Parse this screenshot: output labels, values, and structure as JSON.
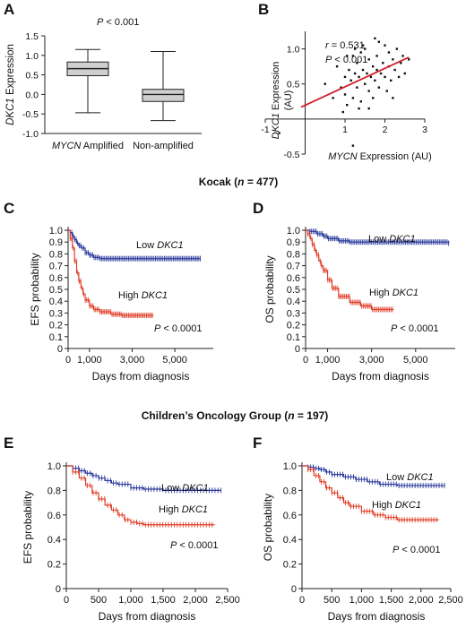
{
  "sections": {
    "kocak": {
      "prefix": "Kocak (",
      "n": "n",
      "suffix": " = 477)"
    },
    "cog": {
      "prefix": "Children’s Oncology Group (",
      "n": "n",
      "suffix": " = 197)"
    }
  },
  "colors": {
    "low": "#2b3a9c",
    "high": "#e0402a",
    "reg": "#d0202a",
    "box": "#cfcfcf"
  },
  "chart_data": [
    {
      "panel": "A",
      "type": "box",
      "pvalue": "P < 0.001",
      "ylabel": "DKC1 Expression",
      "categories": [
        [
          "MYCN",
          " Amplified"
        ],
        [
          "Non-amplified",
          ""
        ]
      ],
      "ylim": [
        -1.0,
        1.5
      ],
      "yticks": [
        "-1.0",
        "-0.5",
        "0.0",
        "0.5",
        "1.0",
        "1.5"
      ],
      "yticks_values": [
        -1.0,
        -0.5,
        0.0,
        0.5,
        1.0,
        1.5
      ],
      "boxes": [
        {
          "min": -0.47,
          "q1": 0.48,
          "median": 0.66,
          "q3": 0.83,
          "max": 1.15
        },
        {
          "min": -0.67,
          "q1": -0.18,
          "median": 0.0,
          "q3": 0.13,
          "max": 1.1
        }
      ]
    },
    {
      "panel": "B",
      "type": "scatter",
      "xlabel": "MYCN",
      "xlabel_rest": " Expression (AU)",
      "ylabel_italic": "DKC1",
      "ylabel_rest": " Expression",
      "ylabel_line2": "(AU)",
      "r_label": "r",
      "r_value": " = 0.531",
      "pvalue": "P < 0.001",
      "xlim": [
        -1,
        3
      ],
      "ylim": [
        -0.5,
        1.25
      ],
      "xticks": [
        "-1",
        "1",
        "2",
        "3"
      ],
      "xticks_values": [
        -1,
        1,
        2,
        3
      ],
      "yticks": [
        "-0.5",
        "0.5",
        "1.0"
      ],
      "yticks_values": [
        -0.5,
        0.5,
        1.0
      ],
      "regression": {
        "x": [
          -0.1,
          2.6
        ],
        "y": [
          0.17,
          0.88
        ]
      },
      "points": [
        [
          -0.65,
          -0.2
        ],
        [
          1.2,
          -0.38
        ],
        [
          0.5,
          0.5
        ],
        [
          0.7,
          0.3
        ],
        [
          0.8,
          0.75
        ],
        [
          0.9,
          0.45
        ],
        [
          1.0,
          0.6
        ],
        [
          1.0,
          0.35
        ],
        [
          1.05,
          0.2
        ],
        [
          1.1,
          0.7
        ],
        [
          1.15,
          0.55
        ],
        [
          1.2,
          0.9
        ],
        [
          1.2,
          0.3
        ],
        [
          1.25,
          0.65
        ],
        [
          1.3,
          0.45
        ],
        [
          1.3,
          0.8
        ],
        [
          1.35,
          0.6
        ],
        [
          1.4,
          0.95
        ],
        [
          1.4,
          0.25
        ],
        [
          1.45,
          0.7
        ],
        [
          1.5,
          0.5
        ],
        [
          1.5,
          1.0
        ],
        [
          1.55,
          0.65
        ],
        [
          1.6,
          0.4
        ],
        [
          1.6,
          0.85
        ],
        [
          1.65,
          0.6
        ],
        [
          1.7,
          0.75
        ],
        [
          1.7,
          0.3
        ],
        [
          1.75,
          0.55
        ],
        [
          1.8,
          0.9
        ],
        [
          1.8,
          0.7
        ],
        [
          1.85,
          1.1
        ],
        [
          1.85,
          0.45
        ],
        [
          1.9,
          0.65
        ],
        [
          1.95,
          0.8
        ],
        [
          2.0,
          1.05
        ],
        [
          2.0,
          0.6
        ],
        [
          2.05,
          0.4
        ],
        [
          2.1,
          0.75
        ],
        [
          2.1,
          0.95
        ],
        [
          2.15,
          0.55
        ],
        [
          2.2,
          0.85
        ],
        [
          2.25,
          0.7
        ],
        [
          2.3,
          1.0
        ],
        [
          2.35,
          0.6
        ],
        [
          2.4,
          0.8
        ],
        [
          2.45,
          0.9
        ],
        [
          2.5,
          0.65
        ],
        [
          1.35,
          0.15
        ],
        [
          1.6,
          0.15
        ],
        [
          1.05,
          0.9
        ],
        [
          1.75,
          1.15
        ],
        [
          0.95,
          0.1
        ],
        [
          1.45,
          1.05
        ],
        [
          2.6,
          0.85
        ],
        [
          1.25,
          1.0
        ],
        [
          2.2,
          0.3
        ]
      ]
    },
    {
      "panel": "C",
      "type": "line",
      "ylabel": "EFS probability",
      "xlabel": "Days from diagnosis",
      "xlim": [
        0,
        6800
      ],
      "ylim": [
        0,
        1.0
      ],
      "xticks": [
        "0",
        "1,000",
        "3,000",
        "5,000"
      ],
      "xticks_values": [
        0,
        1000,
        3000,
        5000
      ],
      "yticks": [
        "0",
        "0.1",
        "0.2",
        "0.3",
        "0.4",
        "0.5",
        "0.6",
        "0.7",
        "0.8",
        "0.9",
        "1.0"
      ],
      "yticks_values": [
        0,
        0.1,
        0.2,
        0.3,
        0.4,
        0.5,
        0.6,
        0.7,
        0.8,
        0.9,
        1.0
      ],
      "pvalue": "P < 0.0001",
      "series": [
        {
          "label_prefix": "Low ",
          "label_italic": "DKC1",
          "key": "low",
          "x": [
            0,
            100,
            200,
            300,
            400,
            500,
            600,
            800,
            1000,
            1200,
            1500,
            2000,
            6200
          ],
          "y": [
            1.0,
            0.98,
            0.95,
            0.92,
            0.89,
            0.87,
            0.85,
            0.81,
            0.79,
            0.77,
            0.76,
            0.76,
            0.76
          ]
        },
        {
          "label_prefix": "High ",
          "label_italic": "DKC1",
          "key": "high",
          "x": [
            0,
            100,
            200,
            300,
            400,
            500,
            600,
            700,
            800,
            1000,
            1200,
            1500,
            2000,
            2500,
            4000
          ],
          "y": [
            1.0,
            0.93,
            0.85,
            0.74,
            0.64,
            0.57,
            0.51,
            0.46,
            0.41,
            0.36,
            0.33,
            0.31,
            0.29,
            0.28,
            0.28
          ]
        }
      ]
    },
    {
      "panel": "D",
      "type": "line",
      "ylabel": "OS probability",
      "xlabel": "Days from diagnosis",
      "xlim": [
        0,
        6800
      ],
      "ylim": [
        0,
        1.0
      ],
      "xticks": [
        "0",
        "1,000",
        "3,000",
        "5,000"
      ],
      "xticks_values": [
        0,
        1000,
        3000,
        5000
      ],
      "yticks": [
        "0",
        "0.1",
        "0.2",
        "0.3",
        "0.4",
        "0.5",
        "0.6",
        "0.7",
        "0.8",
        "0.9",
        "1.0"
      ],
      "yticks_values": [
        0,
        0.1,
        0.2,
        0.3,
        0.4,
        0.5,
        0.6,
        0.7,
        0.8,
        0.9,
        1.0
      ],
      "pvalue": "P < 0.0001",
      "series": [
        {
          "label_prefix": "Low ",
          "label_italic": "DKC1",
          "key": "low",
          "x": [
            0,
            200,
            500,
            800,
            1000,
            1500,
            2000,
            6500
          ],
          "y": [
            1.0,
            0.99,
            0.97,
            0.95,
            0.93,
            0.91,
            0.9,
            0.89
          ]
        },
        {
          "label_prefix": "High ",
          "label_italic": "DKC1",
          "key": "high",
          "x": [
            0,
            100,
            200,
            300,
            400,
            500,
            600,
            700,
            800,
            1000,
            1200,
            1500,
            2000,
            2500,
            3000,
            4000
          ],
          "y": [
            1.0,
            0.97,
            0.93,
            0.88,
            0.83,
            0.79,
            0.74,
            0.7,
            0.66,
            0.58,
            0.51,
            0.44,
            0.39,
            0.36,
            0.33,
            0.33
          ]
        }
      ]
    },
    {
      "panel": "E",
      "type": "line",
      "ylabel": "EFS probability",
      "xlabel": "Days from diagnosis",
      "xlim": [
        0,
        2500
      ],
      "ylim": [
        0,
        1.0
      ],
      "xticks": [
        "0",
        "500",
        "1,000",
        "1,500",
        "2,000",
        "2,500"
      ],
      "xticks_values": [
        0,
        500,
        1000,
        1500,
        2000,
        2500
      ],
      "yticks": [
        "0",
        "0.2",
        "0.4",
        "0.6",
        "0.8",
        "1.0"
      ],
      "yticks_values": [
        0,
        0.2,
        0.4,
        0.6,
        0.8,
        1.0
      ],
      "pvalue": "P < 0.0001",
      "series": [
        {
          "label_prefix": "Low ",
          "label_italic": "DKC1",
          "key": "low",
          "x": [
            0,
            100,
            200,
            300,
            400,
            500,
            600,
            700,
            800,
            1000,
            1200,
            1500,
            2400
          ],
          "y": [
            1.0,
            0.98,
            0.96,
            0.94,
            0.92,
            0.9,
            0.88,
            0.86,
            0.85,
            0.82,
            0.81,
            0.8,
            0.8
          ]
        },
        {
          "label_prefix": "High ",
          "label_italic": "DKC1",
          "key": "high",
          "x": [
            0,
            100,
            200,
            300,
            400,
            500,
            600,
            700,
            800,
            900,
            1000,
            1100,
            1200,
            1500,
            2300
          ],
          "y": [
            1.0,
            0.95,
            0.9,
            0.84,
            0.78,
            0.73,
            0.68,
            0.64,
            0.6,
            0.56,
            0.54,
            0.53,
            0.52,
            0.52,
            0.52
          ]
        }
      ]
    },
    {
      "panel": "F",
      "type": "line",
      "ylabel": "OS probability",
      "xlabel": "Days from diagnosis",
      "xlim": [
        0,
        2500
      ],
      "ylim": [
        0,
        1.0
      ],
      "xticks": [
        "0",
        "500",
        "1,000",
        "1,500",
        "2,000",
        "2,500"
      ],
      "xticks_values": [
        0,
        500,
        1000,
        1500,
        2000,
        2500
      ],
      "yticks": [
        "0",
        "0.2",
        "0.4",
        "0.6",
        "0.8",
        "1.0"
      ],
      "yticks_values": [
        0,
        0.2,
        0.4,
        0.6,
        0.8,
        1.0
      ],
      "pvalue": "P < 0.0001",
      "series": [
        {
          "label_prefix": "Low ",
          "label_italic": "DKC1",
          "key": "low",
          "x": [
            0,
            100,
            200,
            300,
            400,
            500,
            700,
            900,
            1100,
            1300,
            1600,
            2400
          ],
          "y": [
            1.0,
            0.99,
            0.98,
            0.97,
            0.95,
            0.93,
            0.91,
            0.89,
            0.87,
            0.85,
            0.84,
            0.84
          ]
        },
        {
          "label_prefix": "High ",
          "label_italic": "DKC1",
          "key": "high",
          "x": [
            0,
            100,
            200,
            300,
            400,
            500,
            600,
            700,
            800,
            1000,
            1200,
            1400,
            1600,
            2300
          ],
          "y": [
            1.0,
            0.97,
            0.92,
            0.87,
            0.82,
            0.78,
            0.74,
            0.7,
            0.67,
            0.63,
            0.6,
            0.58,
            0.56,
            0.56
          ]
        }
      ]
    }
  ]
}
